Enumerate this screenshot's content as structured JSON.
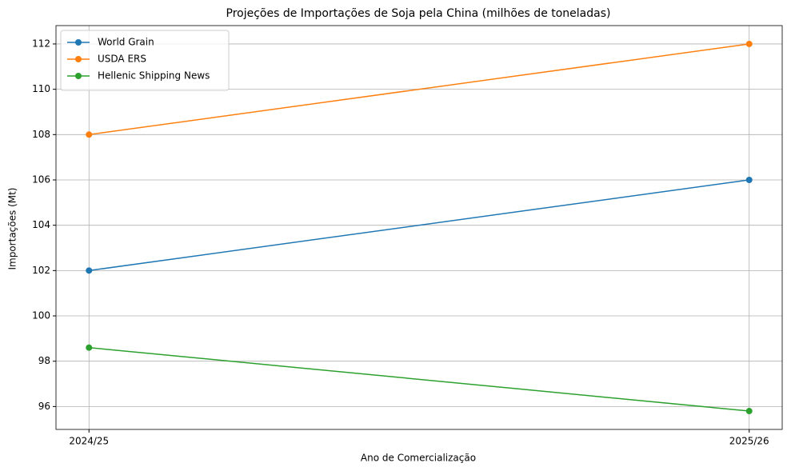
{
  "chart_data": {
    "type": "line",
    "title": "Projeções de Importações de Soja pela China (milhões de toneladas)",
    "xlabel": "Ano de Comercialização",
    "ylabel": "Importações (Mt)",
    "categories": [
      "2024/25",
      "2025/26"
    ],
    "series": [
      {
        "name": "World Grain",
        "color": "#1f77b4",
        "values": [
          102,
          106
        ]
      },
      {
        "name": "USDA ERS",
        "color": "#ff7f0e",
        "values": [
          108,
          112
        ]
      },
      {
        "name": "Hellenic Shipping News",
        "color": "#2ca02c",
        "values": [
          98.6,
          95.8
        ]
      }
    ],
    "ylim": [
      94.99,
      112.81
    ],
    "yticks": [
      96,
      98,
      100,
      102,
      104,
      106,
      108,
      110,
      112
    ],
    "grid": true,
    "legend": "upper-left",
    "marker": "circle"
  }
}
